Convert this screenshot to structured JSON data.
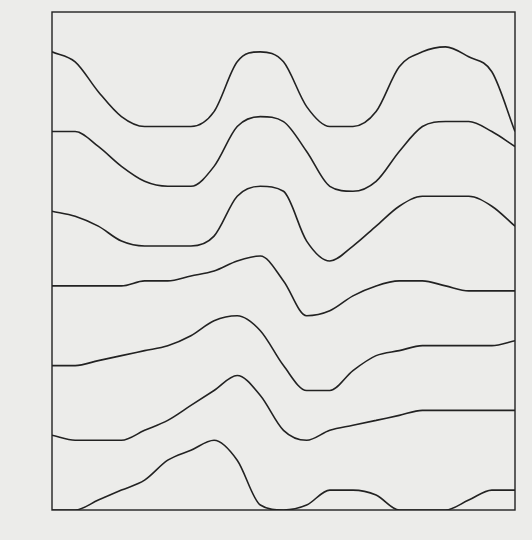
{
  "chart_data": {
    "type": "line",
    "x": [
      0,
      5,
      10,
      15,
      20,
      25,
      30,
      35,
      40,
      45,
      50,
      55,
      60,
      65,
      70,
      75,
      80,
      85,
      90,
      95,
      100
    ],
    "series": [
      {
        "color": "#222222",
        "values": [
          92,
          90,
          84,
          79,
          77,
          77,
          77,
          80,
          90,
          92,
          90,
          81,
          77,
          77,
          80,
          89,
          92,
          93,
          91,
          88,
          76
        ]
      },
      {
        "color": "#222222",
        "values": [
          76,
          76,
          73,
          69,
          66,
          65,
          65,
          69,
          77,
          79,
          78,
          72,
          65,
          64,
          66,
          72,
          77,
          78,
          78,
          76,
          73
        ]
      },
      {
        "color": "#222222",
        "values": [
          60,
          59,
          57,
          54,
          53,
          53,
          53,
          55,
          63,
          65,
          64,
          54,
          50,
          53,
          57,
          61,
          63,
          63,
          63,
          61,
          57
        ]
      },
      {
        "color": "#222222",
        "values": [
          45,
          45,
          45,
          45,
          46,
          46,
          47,
          48,
          50,
          51,
          46,
          39,
          40,
          43,
          45,
          46,
          46,
          45,
          44,
          44,
          44
        ]
      },
      {
        "color": "#222222",
        "values": [
          29,
          29,
          30,
          31,
          32,
          33,
          35,
          38,
          39,
          36,
          29,
          24,
          24,
          28,
          31,
          32,
          33,
          33,
          33,
          33,
          34
        ]
      },
      {
        "color": "#222222",
        "values": [
          15,
          14,
          14,
          14,
          16,
          18,
          21,
          24,
          27,
          23,
          16,
          14,
          16,
          17,
          18,
          19,
          20,
          20,
          20,
          20,
          20
        ]
      },
      {
        "color": "#222222",
        "values": [
          0,
          0,
          2,
          4,
          6,
          10,
          12,
          14,
          10,
          1,
          0,
          1,
          4,
          4,
          3,
          0,
          0,
          0,
          2,
          4,
          4
        ]
      }
    ],
    "xlim": [
      0,
      100
    ],
    "ylim": [
      0,
      100
    ],
    "grid": false,
    "tick_labels": false
  }
}
